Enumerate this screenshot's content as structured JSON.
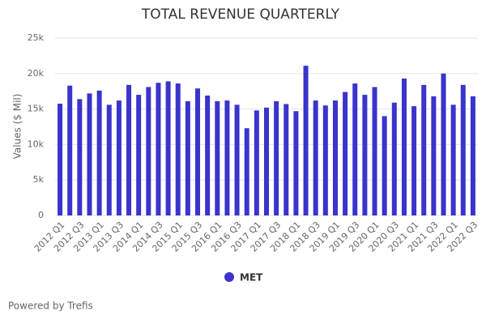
{
  "chart_data": {
    "type": "bar",
    "title": "TOTAL REVENUE QUARTERLY",
    "y_label": "Values ($ Mil)",
    "footer": "Powered by Trefis",
    "categories": [
      "2012 Q1",
      null,
      "2012 Q3",
      null,
      "2013 Q1",
      null,
      "2013 Q3",
      null,
      "2014 Q1",
      null,
      "2014 Q3",
      null,
      "2015 Q1",
      null,
      "2015 Q3",
      null,
      "2016 Q1",
      null,
      "2016 Q3",
      null,
      "2017 Q1",
      null,
      "2017 Q3",
      null,
      "2018 Q1",
      null,
      "2018 Q3",
      null,
      "2019 Q1",
      null,
      "2019 Q3",
      null,
      "2020 Q1",
      null,
      "2020 Q3",
      null,
      "2021 Q1",
      null,
      "2021 Q3",
      null,
      "2022 Q1",
      null,
      "2022 Q3"
    ],
    "series": [
      {
        "name": "MET",
        "color": "#3a33cc",
        "values": [
          15750,
          18300,
          16400,
          17200,
          17600,
          15600,
          16200,
          18400,
          17000,
          18100,
          18700,
          18900,
          18600,
          16100,
          17900,
          16900,
          16100,
          16200,
          15600,
          12300,
          14800,
          15200,
          16100,
          15700,
          14700,
          21100,
          16200,
          15500,
          16200,
          17400,
          18600,
          17000,
          18100,
          14000,
          15900,
          19300,
          15400,
          18400,
          16800,
          20000,
          15600,
          18400,
          16800
        ]
      }
    ],
    "ylim": [
      0,
      25000
    ],
    "yticks": [
      0,
      {
        "value": 5000,
        "label": "5k"
      },
      {
        "value": 10000,
        "label": "10k"
      },
      {
        "value": 15000,
        "label": "15k"
      },
      {
        "value": 20000,
        "label": "20k"
      },
      {
        "value": 25000,
        "label": "25k"
      }
    ],
    "grid": true
  }
}
